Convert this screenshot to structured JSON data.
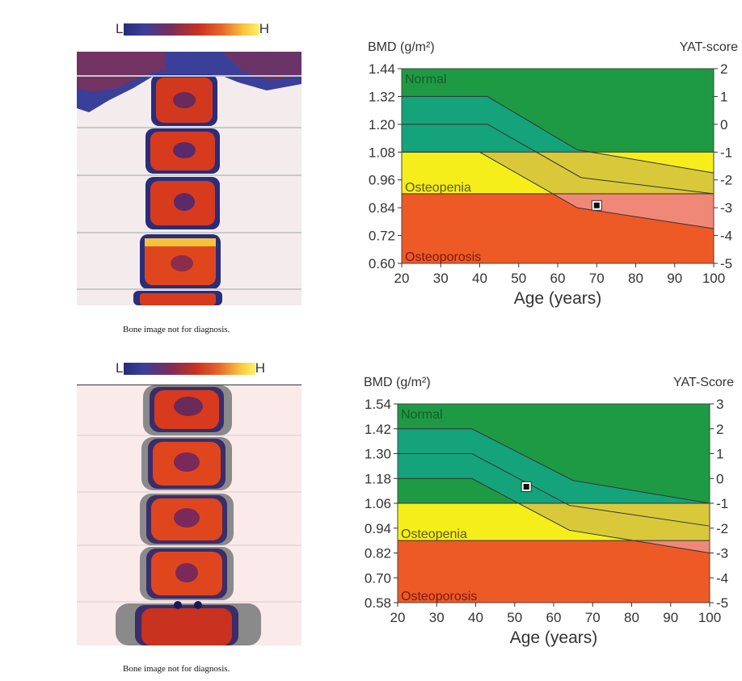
{
  "colorbar": {
    "low_label": "L",
    "high_label": "H"
  },
  "top_panel": {
    "caption": "Bone image not for diagnosis."
  },
  "bottom_panel": {
    "caption": "Bone image not for diagnosis."
  },
  "colors": {
    "normal": "#1e9a44",
    "normal_band": "#14a37a",
    "osteopenia": "#f6ee1a",
    "osteopenia_band": "#d9c93a",
    "osteoporosis": "#ee5a26",
    "osteoporosis_band": "#f08878"
  },
  "chart_data": [
    {
      "type": "line",
      "y_label": "BMD (g/m²)",
      "y2_label": "YAT-score",
      "xlabel": "Age (years)",
      "x_ticks": [
        20,
        30,
        40,
        50,
        60,
        70,
        80,
        90,
        100
      ],
      "y_ticks": [
        "0.60",
        "0.72",
        "0.84",
        "0.96",
        "1.08",
        "1.20",
        "1.32",
        "1.44"
      ],
      "y2_ticks": [
        "-5",
        "-4",
        "-3",
        "-2",
        "-1",
        "0",
        "1",
        "2"
      ],
      "xlim": [
        20,
        100
      ],
      "ylim": [
        0.6,
        1.44
      ],
      "zones": [
        {
          "name": "Normal",
          "from": 1.08,
          "to": 1.44
        },
        {
          "name": "Osteopenia",
          "from": 0.9,
          "to": 1.08
        },
        {
          "name": "Osteoporosis",
          "from": 0.6,
          "to": 0.9
        }
      ],
      "reference_upper": {
        "x": [
          20,
          42,
          65,
          100
        ],
        "y": [
          1.32,
          1.32,
          1.09,
          0.99
        ]
      },
      "reference_mean": {
        "x": [
          20,
          42,
          66,
          100
        ],
        "y": [
          1.2,
          1.2,
          0.97,
          0.9
        ]
      },
      "reference_lower": {
        "x": [
          20,
          40,
          65,
          100
        ],
        "y": [
          1.08,
          1.08,
          0.84,
          0.75
        ]
      },
      "patient": {
        "x": 70,
        "y": 0.85
      }
    },
    {
      "type": "line",
      "y_label": "BMD (g/m²)",
      "y2_label": "YAT-Score",
      "xlabel": "Age (years)",
      "x_ticks": [
        20,
        30,
        40,
        50,
        60,
        70,
        80,
        90,
        100
      ],
      "y_ticks": [
        "0.58",
        "0.70",
        "0.82",
        "0.94",
        "1.06",
        "1.18",
        "1.30",
        "1.42",
        "1.54"
      ],
      "y2_ticks": [
        "-5",
        "-4",
        "-3",
        "-2",
        "-1",
        "0",
        "1",
        "2",
        "3"
      ],
      "xlim": [
        20,
        100
      ],
      "ylim": [
        0.58,
        1.54
      ],
      "zones": [
        {
          "name": "Normal",
          "from": 1.06,
          "to": 1.54
        },
        {
          "name": "Osteopenia",
          "from": 0.88,
          "to": 1.06
        },
        {
          "name": "Osteoporosis",
          "from": 0.58,
          "to": 0.88
        }
      ],
      "reference_upper": {
        "x": [
          20,
          39,
          65,
          100
        ],
        "y": [
          1.42,
          1.42,
          1.17,
          1.06
        ]
      },
      "reference_mean": {
        "x": [
          20,
          39,
          64,
          100
        ],
        "y": [
          1.3,
          1.3,
          1.05,
          0.95
        ]
      },
      "reference_lower": {
        "x": [
          20,
          39,
          64,
          100
        ],
        "y": [
          1.18,
          1.18,
          0.93,
          0.82
        ]
      },
      "patient": {
        "x": 53,
        "y": 1.14
      }
    }
  ]
}
